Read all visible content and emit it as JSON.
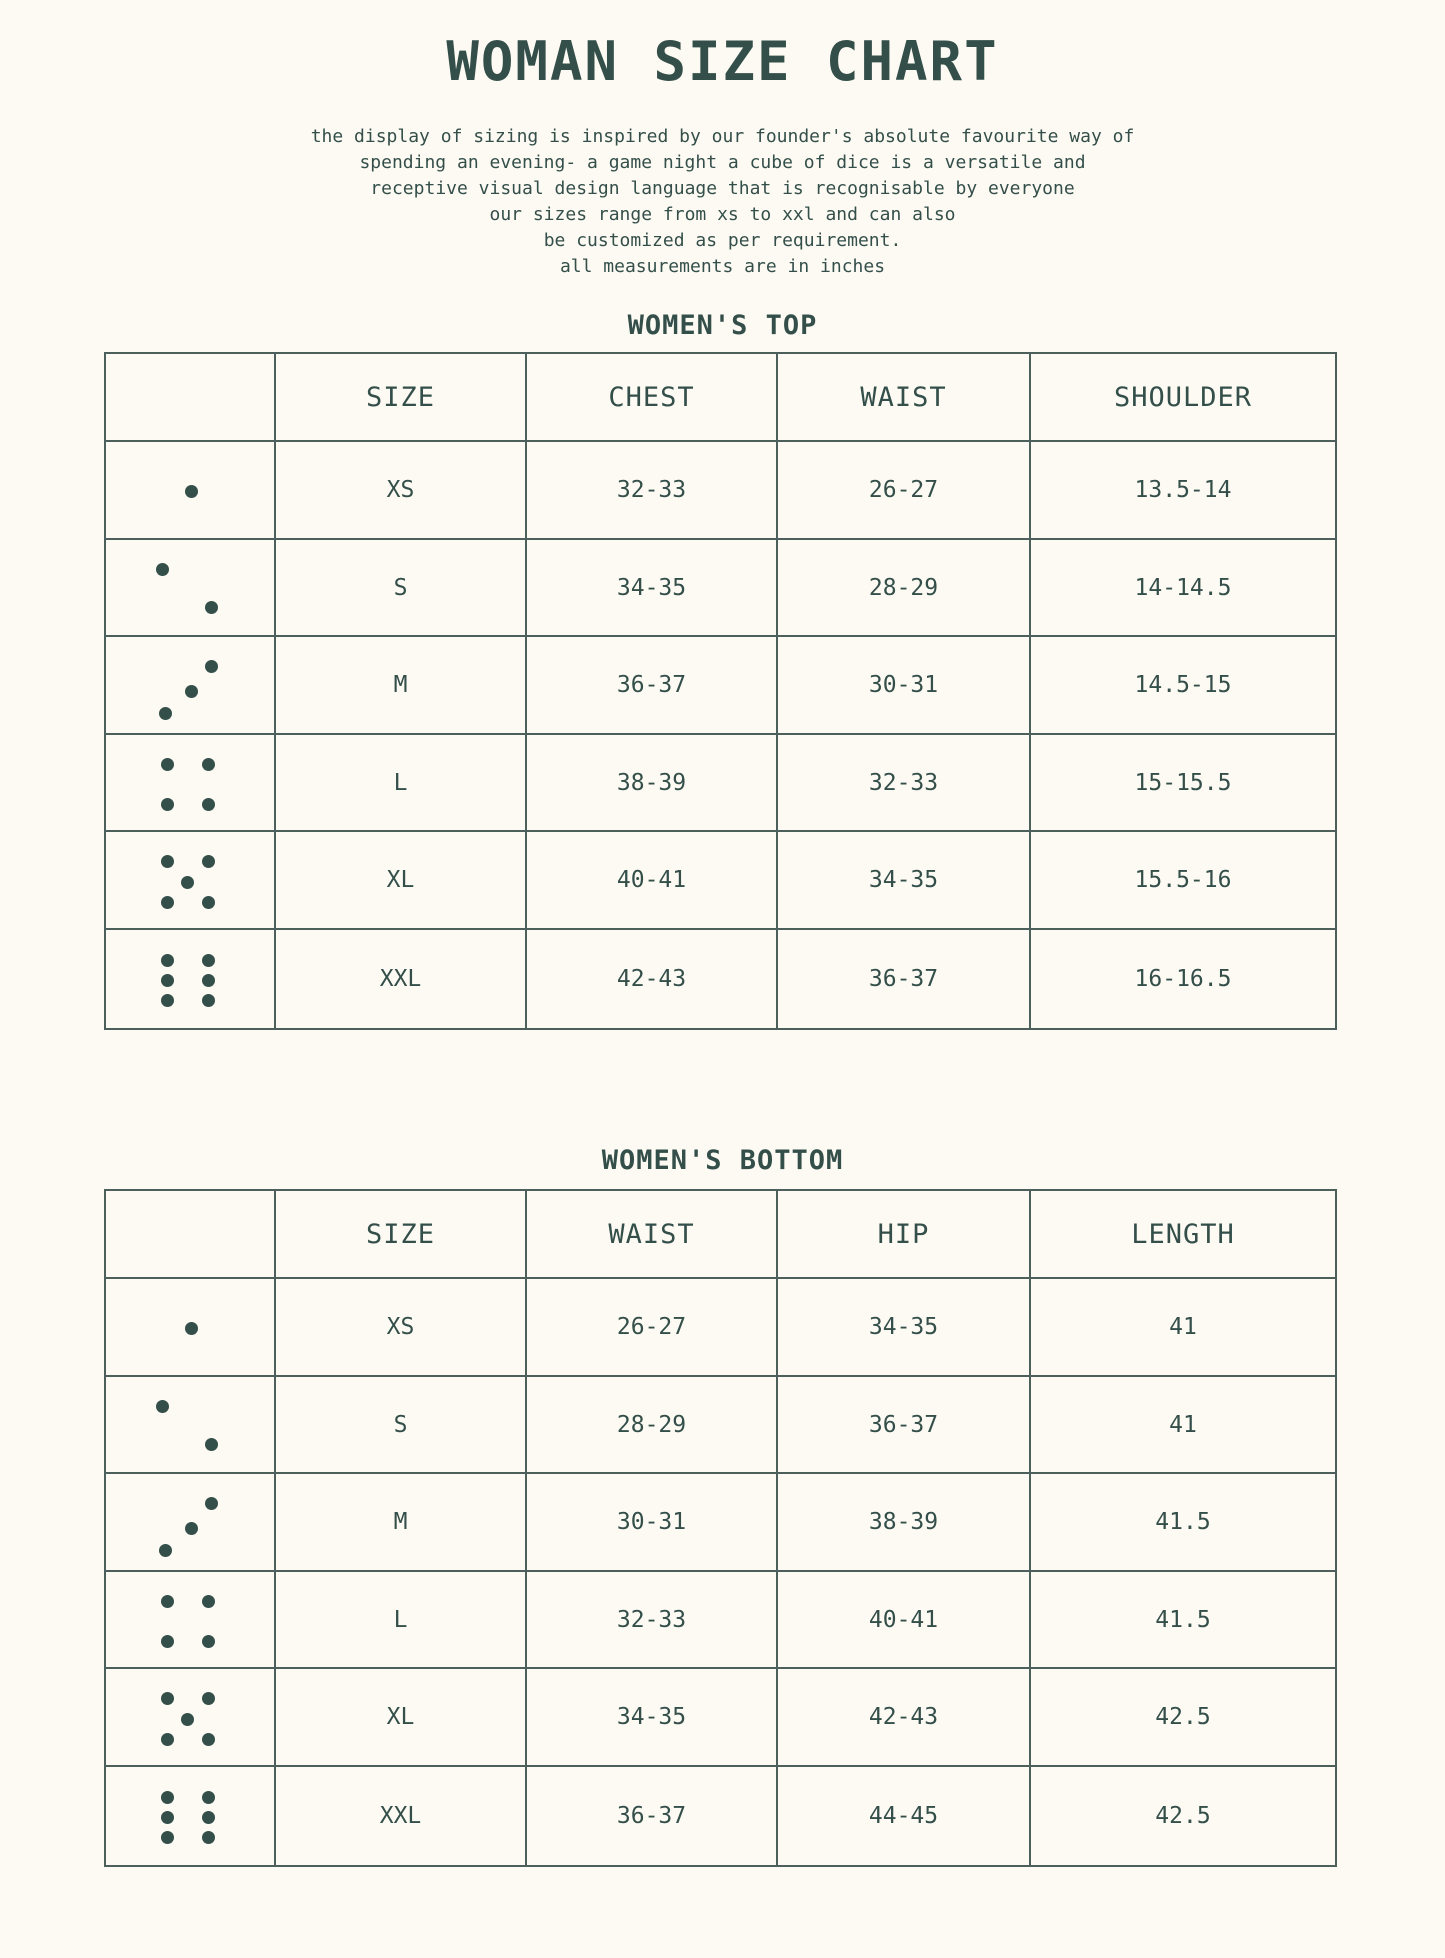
{
  "title": "WOMAN SIZE CHART",
  "intro": [
    "the display of sizing is inspired by our founder's absolute favourite way of",
    "spending an evening- a game night a cube of dice is a versatile and",
    "receptive visual design language that is recognisable by everyone",
    "our sizes range from xs to xxl and can also",
    "be customized as per requirement.",
    "all measurements are in inches"
  ],
  "colors": {
    "text": "#344f4a",
    "background": "#fdfaf3",
    "border": "#4d5f5b"
  },
  "tables": [
    {
      "title": "WOMEN'S TOP",
      "headers": [
        "",
        "SIZE",
        "CHEST",
        "WAIST",
        "SHOULDER"
      ],
      "rows": [
        {
          "dice": 1,
          "cells": [
            "XS",
            "32-33",
            "26-27",
            "13.5-14"
          ]
        },
        {
          "dice": 2,
          "cells": [
            "S",
            "34-35",
            "28-29",
            "14-14.5"
          ]
        },
        {
          "dice": 3,
          "cells": [
            "M",
            "36-37",
            "30-31",
            "14.5-15"
          ]
        },
        {
          "dice": 4,
          "cells": [
            "L",
            "38-39",
            "32-33",
            "15-15.5"
          ]
        },
        {
          "dice": 5,
          "cells": [
            "XL",
            "40-41",
            "34-35",
            "15.5-16"
          ]
        },
        {
          "dice": 6,
          "cells": [
            "XXL",
            "42-43",
            "36-37",
            "16-16.5"
          ]
        }
      ]
    },
    {
      "title": "WOMEN'S BOTTOM",
      "headers": [
        "",
        "SIZE",
        "WAIST",
        "HIP",
        "LENGTH"
      ],
      "rows": [
        {
          "dice": 1,
          "cells": [
            "XS",
            "26-27",
            "34-35",
            "41"
          ]
        },
        {
          "dice": 2,
          "cells": [
            "S",
            "28-29",
            "36-37",
            "41"
          ]
        },
        {
          "dice": 3,
          "cells": [
            "M",
            "30-31",
            "38-39",
            "41.5"
          ]
        },
        {
          "dice": 4,
          "cells": [
            "L",
            "32-33",
            "40-41",
            "41.5"
          ]
        },
        {
          "dice": 5,
          "cells": [
            "XL",
            "34-35",
            "42-43",
            "42.5"
          ]
        },
        {
          "dice": 6,
          "cells": [
            "XXL",
            "36-37",
            "44-45",
            "42.5"
          ]
        }
      ]
    }
  ]
}
